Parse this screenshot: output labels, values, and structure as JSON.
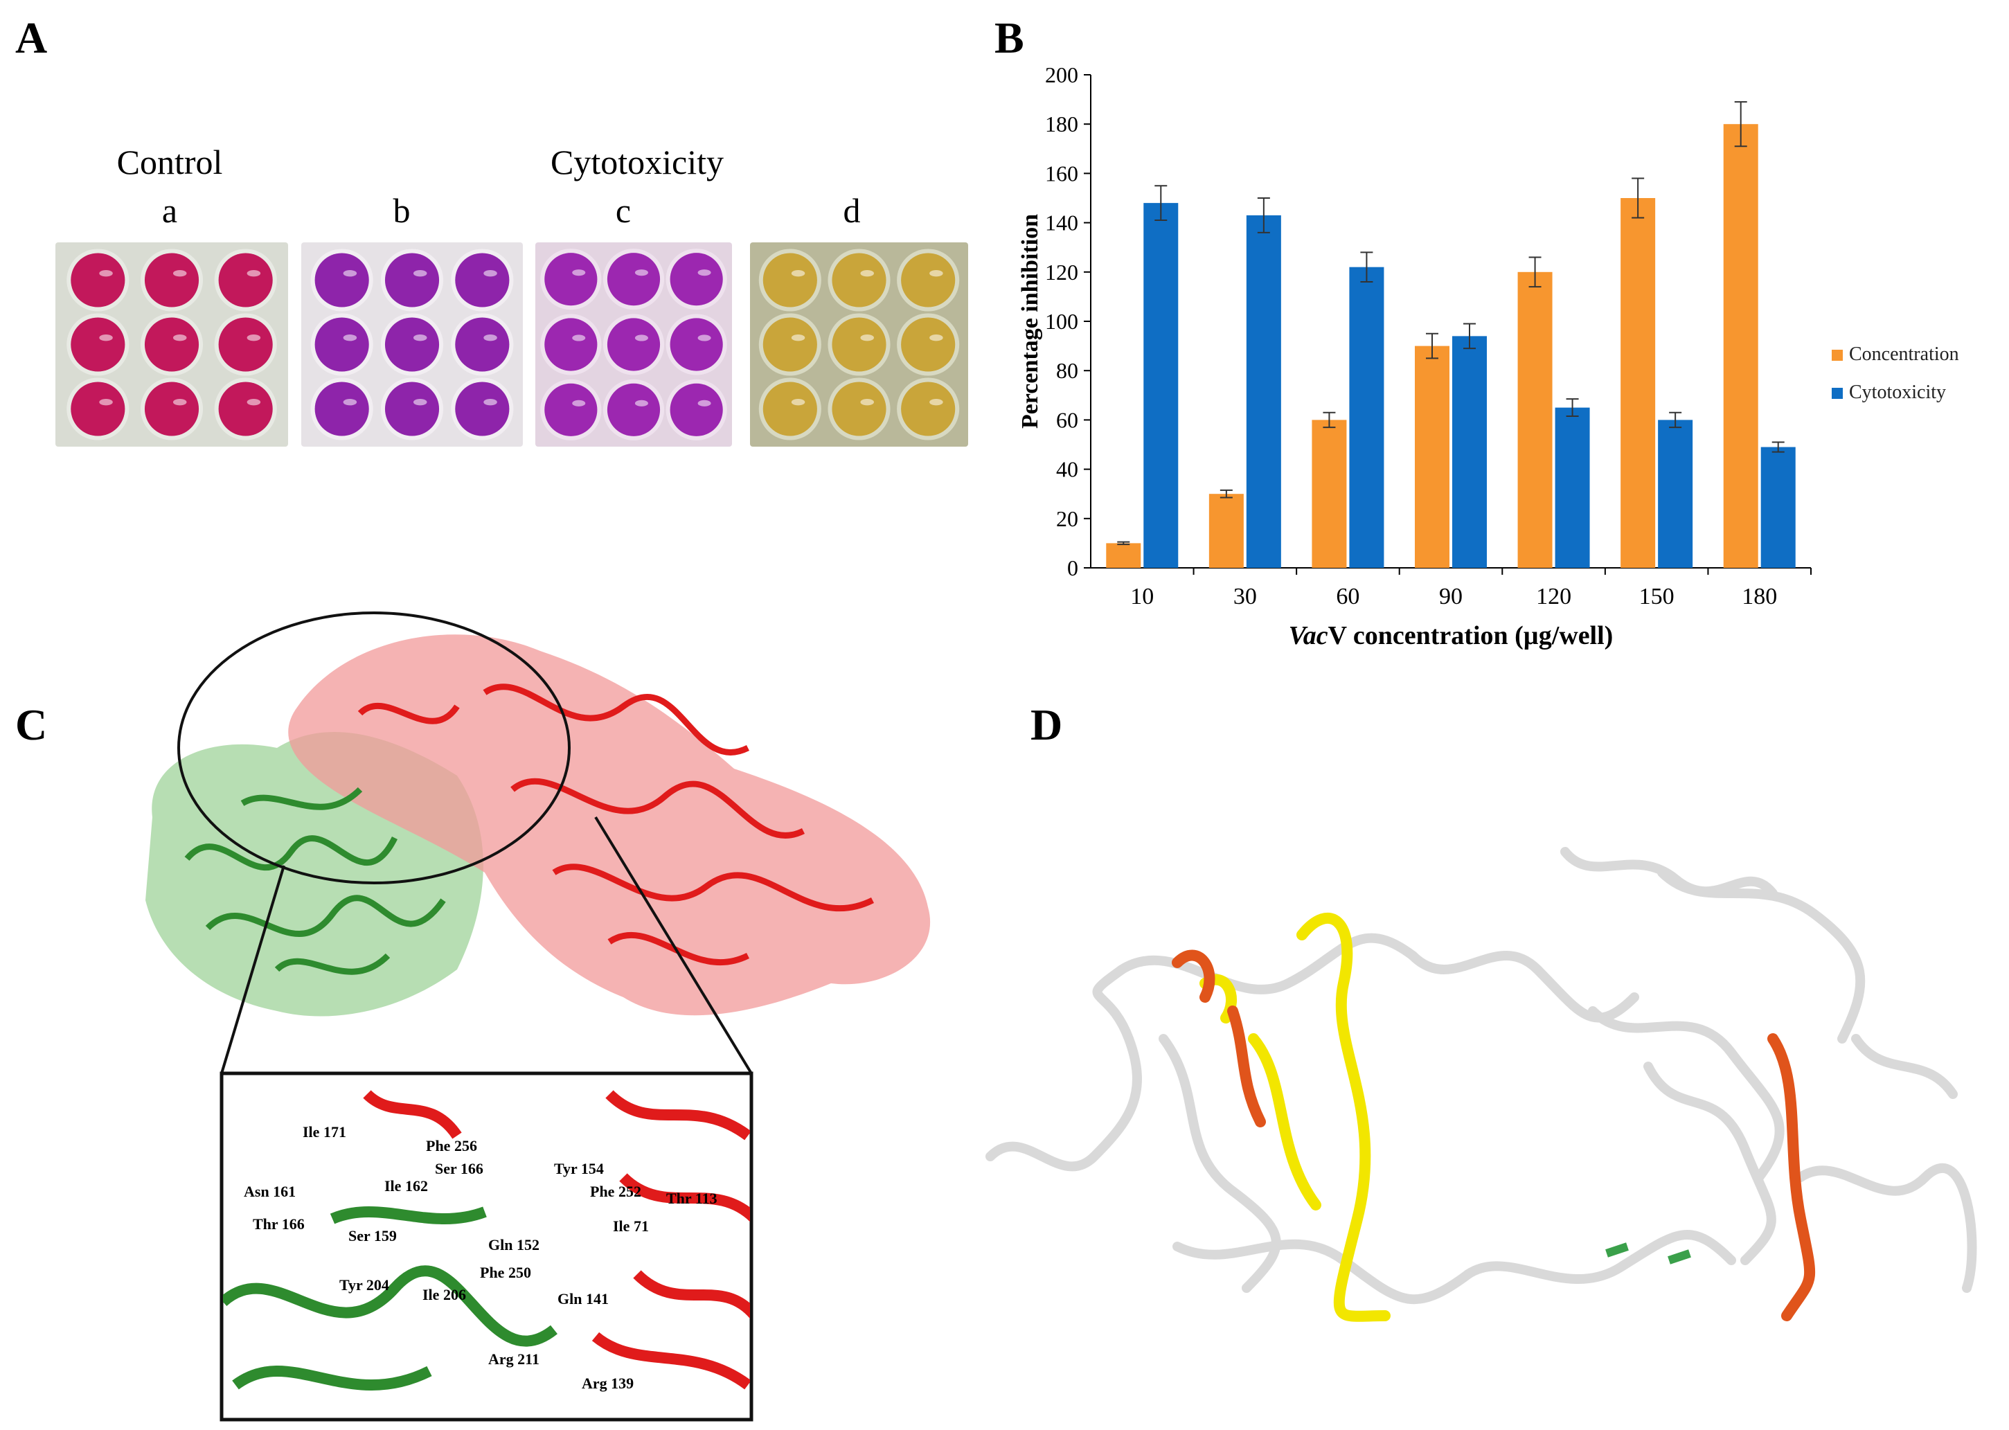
{
  "panels": {
    "A": {
      "letter": "A",
      "group_control": "Control",
      "group_cytotoxicity": "Cytotoxicity",
      "wells": [
        "a",
        "b",
        "c",
        "d"
      ]
    },
    "B": {
      "letter": "B"
    },
    "C": {
      "letter": "C",
      "residues_red": [
        "Ile 171",
        "Phe 256",
        "Ser 166",
        "Tyr 154",
        "Asn 161",
        "Ile 162",
        "Phe 252",
        "Thr 113",
        "Ile 71",
        "Gln 141",
        "Arg 139"
      ],
      "residues_green": [
        "Thr 166",
        "Ser 159",
        "Gln 152",
        "Phe 250",
        "Tyr 204",
        "Ile 206",
        "Arg 211"
      ]
    },
    "D": {
      "letter": "D"
    }
  },
  "colors": {
    "concentration": "#F7962F",
    "cytotoxicity": "#0F6EC4",
    "protein_red": "#E01B1B",
    "protein_green": "#2E8B2E",
    "ribbon_yellow": "#F2E600",
    "ribbon_orange": "#E0541B"
  },
  "chart_data": {
    "type": "bar",
    "title": "",
    "xlabel_italic": "Vac",
    "xlabel_rest": "V concentration (µg/well)",
    "ylabel": "Percentage inhibition",
    "ylim": [
      0,
      200
    ],
    "yticks": [
      0,
      20,
      40,
      60,
      80,
      100,
      120,
      140,
      160,
      180,
      200
    ],
    "categories": [
      "10",
      "30",
      "60",
      "90",
      "120",
      "150",
      "180"
    ],
    "legend_position": "right",
    "grid": false,
    "series": [
      {
        "name": "Concentration",
        "values": [
          10,
          30,
          60,
          90,
          120,
          150,
          180
        ],
        "errors": [
          0.5,
          1.5,
          3,
          5,
          6,
          8,
          9
        ]
      },
      {
        "name": "Cytotoxicity",
        "values": [
          148,
          143,
          122,
          94,
          65,
          60,
          49
        ],
        "errors": [
          7,
          7,
          6,
          5,
          3.5,
          3,
          2
        ]
      }
    ]
  }
}
